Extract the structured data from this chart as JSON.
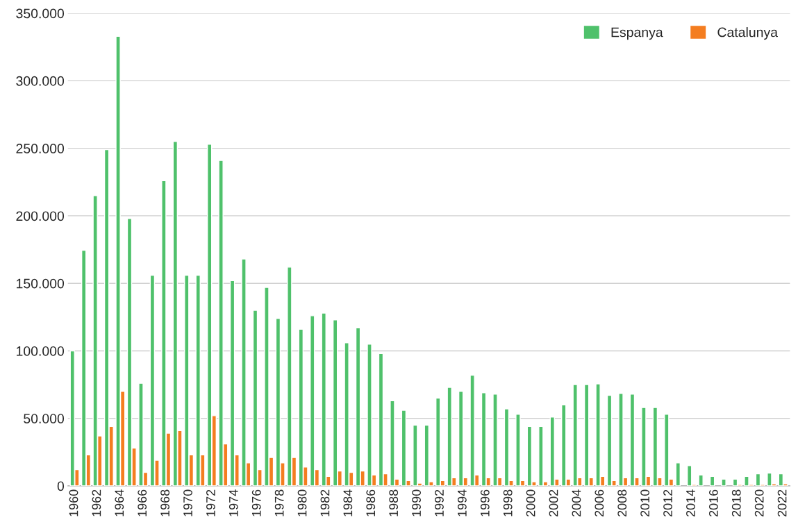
{
  "chart_data": {
    "type": "bar",
    "categories": [
      "1960",
      null,
      "1962",
      null,
      "1964",
      null,
      "1966",
      null,
      "1968",
      null,
      "1970",
      null,
      "1972",
      null,
      "1974",
      null,
      "1976",
      null,
      "1978",
      null,
      "1980",
      null,
      "1982",
      null,
      "1984",
      null,
      "1986",
      null,
      "1988",
      null,
      "1990",
      null,
      "1992",
      null,
      "1994",
      null,
      "1996",
      null,
      "1998",
      null,
      "2000",
      null,
      "2002",
      null,
      "2004",
      null,
      "2006",
      null,
      "2008",
      null,
      "2010",
      null,
      "2012",
      null,
      "2014",
      null,
      "2016",
      null,
      "2018",
      null,
      "2020",
      null,
      "2022"
    ],
    "series": [
      {
        "name": "Espanya",
        "color": "#4fc16b",
        "values": [
          100000,
          174500,
          215000,
          249000,
          333000,
          198000,
          76000,
          156000,
          226000,
          255000,
          156000,
          156000,
          253000,
          241000,
          152000,
          168000,
          130000,
          147000,
          124000,
          162000,
          116000,
          126000,
          128000,
          123000,
          106000,
          117000,
          105000,
          98000,
          63000,
          56000,
          45000,
          45000,
          65000,
          73000,
          70000,
          82000,
          69000,
          68000,
          57000,
          53000,
          44000,
          44000,
          51000,
          60000,
          75000,
          75000,
          75500,
          67000,
          68500,
          68000,
          58000,
          58000,
          53000,
          17000,
          15000,
          8000,
          7000,
          5000,
          5000,
          7000,
          9000,
          9500,
          9000
        ]
      },
      {
        "name": "Catalunya",
        "color": "#f47d20",
        "values": [
          12000,
          23000,
          37000,
          44000,
          70000,
          28000,
          10000,
          19000,
          39000,
          41000,
          23000,
          23000,
          52000,
          31000,
          23000,
          17000,
          12000,
          21000,
          17000,
          21000,
          14000,
          12000,
          7000,
          11000,
          10000,
          11000,
          8000,
          9000,
          5000,
          4000,
          2000,
          3000,
          4000,
          6000,
          6000,
          8000,
          6000,
          6000,
          4000,
          4000,
          3000,
          3000,
          5000,
          5000,
          6000,
          6000,
          7000,
          4000,
          6000,
          6000,
          7000,
          6000,
          5000,
          null,
          1000,
          null,
          null,
          null,
          1000,
          1000,
          1000,
          1500,
          1500
        ]
      }
    ],
    "ylim": [
      0,
      350000
    ],
    "yticks": [
      {
        "value": 0,
        "label": "0"
      },
      {
        "value": 50000,
        "label": "50.000"
      },
      {
        "value": 100000,
        "label": "100.000"
      },
      {
        "value": 150000,
        "label": "150.000"
      },
      {
        "value": 200000,
        "label": "200.000"
      },
      {
        "value": 250000,
        "label": "250.000"
      },
      {
        "value": 300000,
        "label": "300.000"
      },
      {
        "value": 350000,
        "label": "350.000"
      }
    ],
    "grid": "y",
    "legend": "top right"
  }
}
